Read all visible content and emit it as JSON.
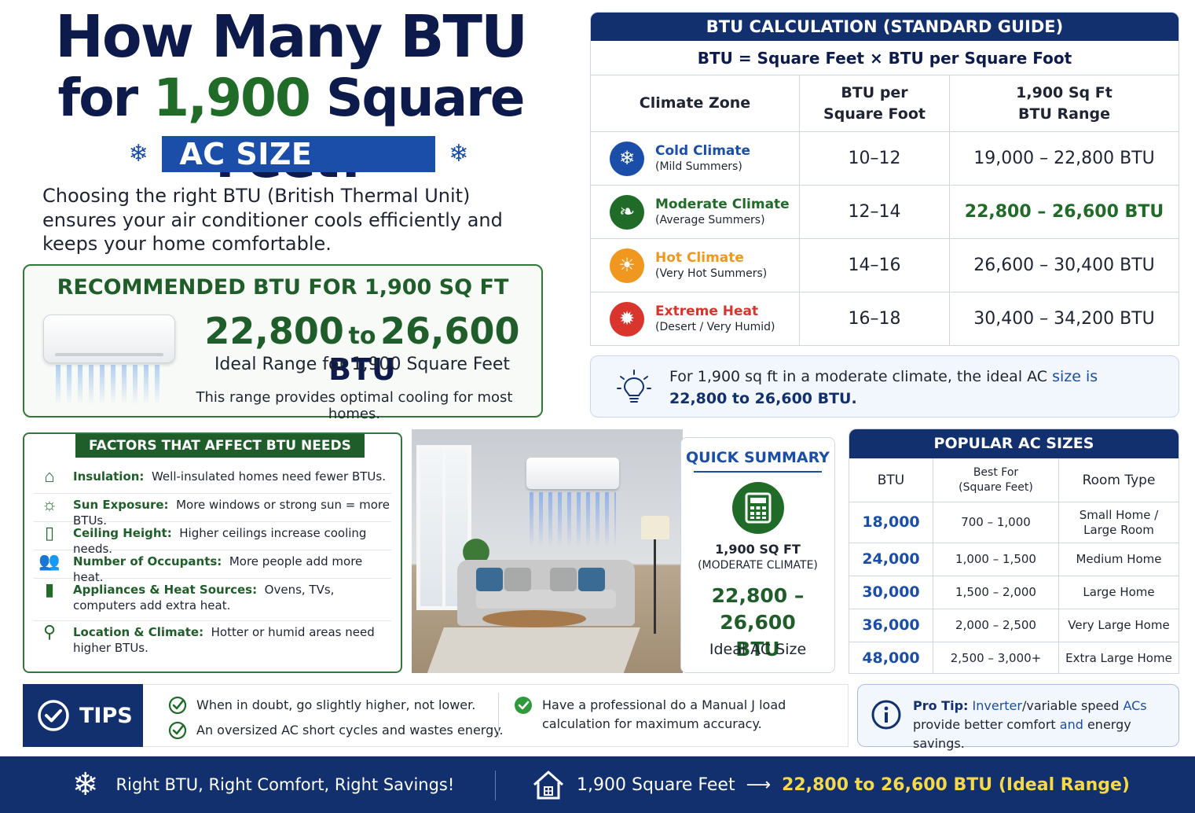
{
  "title": {
    "line1": "How Many BTU",
    "line2_prefix": "for ",
    "line2_number": "1,900",
    "line2_suffix": " Square Feet?"
  },
  "guide_badge": "AC SIZE GUIDE",
  "intro": "Choosing the right BTU (British Thermal Unit) ensures your air conditioner cools efficiently and keeps your home comfortable.",
  "recommended": {
    "heading": "RECOMMENDED BTU FOR 1,900 SQ FT",
    "low": "22,800",
    "to": "to",
    "high": "26,600",
    "unit": "BTU",
    "ideal": "Ideal Range for 1,900 Square Feet",
    "note": "This range provides optimal cooling for most homes."
  },
  "calc": {
    "heading": "BTU CALCULATION (STANDARD GUIDE)",
    "formula": "BTU  =  Square Feet  ×  BTU per Square Foot",
    "col_zone": "Climate Zone",
    "col_per_line1": "BTU per",
    "col_per_line2": "Square Foot",
    "col_range_line1": "1,900 Sq Ft",
    "col_range_line2": "BTU Range",
    "rows": [
      {
        "name": "Cold Climate",
        "sub": "(Mild Summers)",
        "per": "10–12",
        "range": "19,000 – 22,800 BTU",
        "color": "#1a4ea8",
        "icon": "snowflake-icon"
      },
      {
        "name": "Moderate Climate",
        "sub": "(Average Summers)",
        "per": "12–14",
        "range": "22,800 – 26,600 BTU",
        "color": "#1f6b27",
        "icon": "leaf-icon"
      },
      {
        "name": "Hot Climate",
        "sub": "(Very Hot Summers)",
        "per": "14–16",
        "range": "26,600 – 30,400 BTU",
        "color": "#f0971f",
        "icon": "sun-icon"
      },
      {
        "name": "Extreme Heat",
        "sub": "(Desert / Very Humid)",
        "per": "16–18",
        "range": "30,400 – 34,200 BTU",
        "color": "#d8362c",
        "icon": "hot-sun-icon"
      }
    ]
  },
  "note": {
    "text_a": "For 1,900 sq ft in a moderate climate, the ideal AC ",
    "text_b": "size is",
    "text_c": "22,800 to 26,600 BTU."
  },
  "factors": {
    "heading": "FACTORS THAT AFFECT BTU NEEDS",
    "items": [
      {
        "label": "Insulation:",
        "text": "Well-insulated homes need fewer BTUs.",
        "icon": "house-icon"
      },
      {
        "label": "Sun Exposure:",
        "text": "More windows or strong sun = more BTUs.",
        "icon": "sun-icon"
      },
      {
        "label": "Ceiling Height:",
        "text": "Higher ceilings increase cooling needs.",
        "icon": "ruler-icon"
      },
      {
        "label": "Number of Occupants:",
        "text": "More people add more heat.",
        "icon": "people-icon"
      },
      {
        "label": "Appliances & Heat Sources:",
        "text": "Ovens, TVs, computers add extra heat.",
        "icon": "appliance-icon"
      },
      {
        "label": "Location & Climate:",
        "text": "Hotter or humid areas need higher BTUs.",
        "icon": "location-pin-icon"
      }
    ]
  },
  "summary": {
    "heading": "QUICK SUMMARY",
    "sqft": "1,900 SQ FT",
    "climate": "(MODERATE CLIMATE)",
    "range": "22,800 – 26,600",
    "unit": "BTU",
    "ideal": "Ideal AC Size"
  },
  "popular": {
    "heading": "POPULAR AC SIZES",
    "col_btu": "BTU",
    "col_best_line1": "Best For",
    "col_best_line2": "(Square Feet)",
    "col_room": "Room Type",
    "rows": [
      {
        "btu": "18,000",
        "sqft": "700 – 1,000",
        "room": "Small Home / Large Room"
      },
      {
        "btu": "24,000",
        "sqft": "1,000 – 1,500",
        "room": "Medium Home"
      },
      {
        "btu": "30,000",
        "sqft": "1,500 – 2,000",
        "room": "Large Home"
      },
      {
        "btu": "36,000",
        "sqft": "2,000 – 2,500",
        "room": "Very Large Home"
      },
      {
        "btu": "48,000",
        "sqft": "2,500 – 3,000+",
        "room": "Extra Large Home"
      }
    ]
  },
  "tips": {
    "label": "TIPS",
    "items": [
      "When in doubt, go slightly higher, not lower.",
      "An oversized AC short cycles and wastes energy.",
      "Have a professional do a Manual J load calculation for maximum accuracy."
    ]
  },
  "protip": {
    "label": "Pro Tip:",
    "text_a": "Inverter",
    "text_b": "/variable speed ",
    "text_c": "ACs",
    "text_d": "provide better comfort ",
    "text_e": "and",
    "text_f": " energy savings."
  },
  "footer": {
    "left": "Right BTU, Right Comfort, Right Savings!",
    "right_a": "1,900 Square Feet",
    "arrow": "⟶",
    "right_b": "22,800 to 26,600 BTU (Ideal Range)"
  },
  "colors": {
    "navy": "#12306e",
    "green": "#1f6b27",
    "blue": "#1a4ea8",
    "yellow": "#f5d94a"
  }
}
